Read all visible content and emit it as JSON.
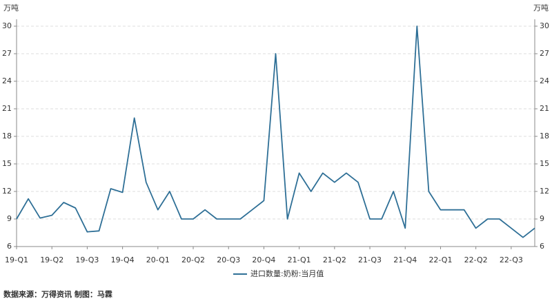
{
  "chart_data": {
    "type": "line",
    "y_label": "万吨",
    "y2_label": "万吨",
    "categories": [
      "19-Q1",
      null,
      null,
      "19-Q2",
      null,
      null,
      "19-Q3",
      null,
      null,
      "19-Q4",
      null,
      null,
      "20-Q1",
      null,
      null,
      "20-Q2",
      null,
      null,
      "20-Q3",
      null,
      null,
      "20-Q4",
      null,
      null,
      "21-Q1",
      null,
      null,
      "21-Q2",
      null,
      null,
      "21-Q3",
      null,
      null,
      "21-Q4",
      null,
      null,
      "22-Q1",
      null,
      null,
      "22-Q2",
      null,
      null,
      "22-Q3",
      null,
      null
    ],
    "series": [
      {
        "name": "进口数量:奶粉:当月值",
        "color": "#2e6f96",
        "values": [
          9,
          11.2,
          9.1,
          9.4,
          10.8,
          10.2,
          7.6,
          7.7,
          12.3,
          11.9,
          20,
          13,
          10,
          12,
          9,
          9,
          10,
          9,
          9,
          9,
          10,
          11,
          27,
          9,
          14,
          12,
          14,
          13,
          14,
          13,
          9,
          9,
          12,
          8,
          30,
          12,
          10,
          10,
          10,
          8,
          9,
          9,
          8,
          7,
          8
        ]
      }
    ],
    "ylim": [
      6,
      30
    ],
    "yticks": [
      6,
      9,
      12,
      15,
      18,
      21,
      24,
      27,
      30
    ],
    "y2lim": [
      6,
      30
    ],
    "y2ticks": [
      6,
      9,
      12,
      15,
      18,
      21,
      24,
      27,
      30
    ],
    "grid": true,
    "legend": "bottom",
    "source": "数据来源：万得资讯 制图：马霖"
  }
}
